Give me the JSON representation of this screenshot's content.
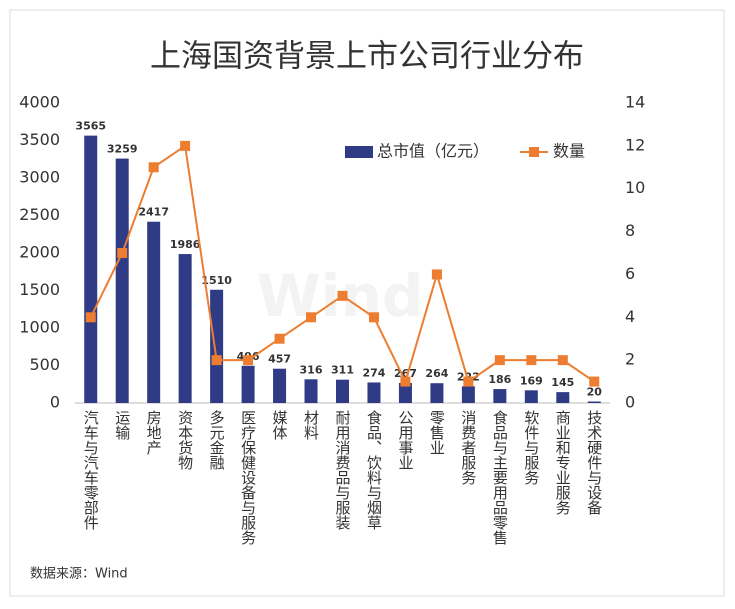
{
  "chart_data": {
    "type": "bar",
    "title": "上海国资背景上市公司行业分布",
    "source": "数据来源：Wind",
    "watermark": "Wind",
    "categories": [
      "汽车与汽车零部件",
      "运输",
      "房地产",
      "资本货物",
      "多元金融",
      "医疗保健设备与服务",
      "媒体",
      "材料",
      "耐用消费品与服装",
      "食品、饮料与烟草",
      "公用事业",
      "零售业",
      "消费者服务",
      "食品与主要用品零售",
      "软件与服务",
      "商业和专业服务",
      "技术硬件与设备"
    ],
    "series": [
      {
        "name": "总市值（亿元）",
        "type": "bar",
        "color": "#2f3b85",
        "values": [
          3565,
          3259,
          2417,
          1986,
          1510,
          496,
          457,
          316,
          311,
          274,
          267,
          264,
          222,
          186,
          169,
          145,
          20
        ]
      },
      {
        "name": "数量",
        "type": "line",
        "axis": "y2",
        "color": "#ed7d31",
        "values": [
          4,
          7,
          11,
          12,
          2,
          2,
          3,
          4,
          5,
          4,
          1,
          6,
          1,
          2,
          2,
          2,
          1
        ]
      }
    ],
    "ylim": [
      0,
      4000
    ],
    "yticks": [
      0,
      500,
      1000,
      1500,
      2000,
      2500,
      3000,
      3500,
      4000
    ],
    "y2lim": [
      0,
      14
    ],
    "y2ticks": [
      0,
      2,
      4,
      6,
      8,
      10,
      12,
      14
    ],
    "legend": "top-right",
    "grid": false
  }
}
